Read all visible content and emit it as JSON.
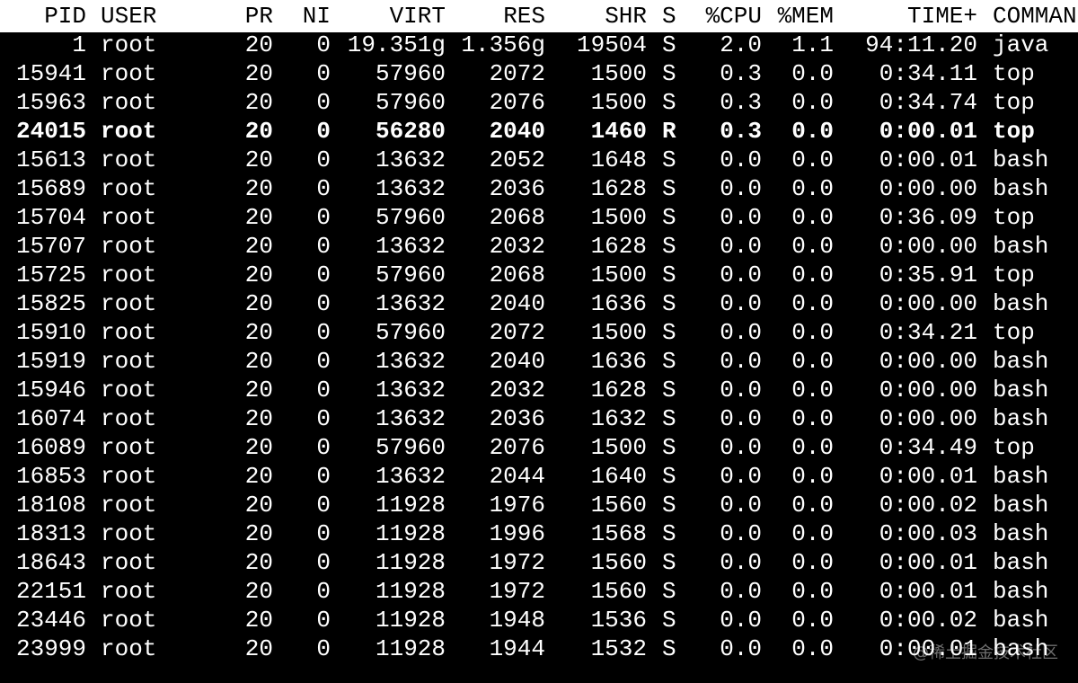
{
  "table": {
    "header": [
      "PID",
      "USER",
      "PR",
      "NI",
      "VIRT",
      "RES",
      "SHR",
      "S",
      "%CPU",
      "%MEM",
      "TIME+",
      "COMMAN"
    ],
    "rows": [
      [
        "1",
        "root",
        "20",
        "0",
        "19.351g",
        "1.356g",
        "19504",
        "S",
        "2.0",
        "1.1",
        "94:11.20",
        "java"
      ],
      [
        "15941",
        "root",
        "20",
        "0",
        "57960",
        "2072",
        "1500",
        "S",
        "0.3",
        "0.0",
        "0:34.11",
        "top"
      ],
      [
        "15963",
        "root",
        "20",
        "0",
        "57960",
        "2076",
        "1500",
        "S",
        "0.3",
        "0.0",
        "0:34.74",
        "top"
      ],
      [
        "24015",
        "root",
        "20",
        "0",
        "56280",
        "2040",
        "1460",
        "R",
        "0.3",
        "0.0",
        "0:00.01",
        "top"
      ],
      [
        "15613",
        "root",
        "20",
        "0",
        "13632",
        "2052",
        "1648",
        "S",
        "0.0",
        "0.0",
        "0:00.01",
        "bash"
      ],
      [
        "15689",
        "root",
        "20",
        "0",
        "13632",
        "2036",
        "1628",
        "S",
        "0.0",
        "0.0",
        "0:00.00",
        "bash"
      ],
      [
        "15704",
        "root",
        "20",
        "0",
        "57960",
        "2068",
        "1500",
        "S",
        "0.0",
        "0.0",
        "0:36.09",
        "top"
      ],
      [
        "15707",
        "root",
        "20",
        "0",
        "13632",
        "2032",
        "1628",
        "S",
        "0.0",
        "0.0",
        "0:00.00",
        "bash"
      ],
      [
        "15725",
        "root",
        "20",
        "0",
        "57960",
        "2068",
        "1500",
        "S",
        "0.0",
        "0.0",
        "0:35.91",
        "top"
      ],
      [
        "15825",
        "root",
        "20",
        "0",
        "13632",
        "2040",
        "1636",
        "S",
        "0.0",
        "0.0",
        "0:00.00",
        "bash"
      ],
      [
        "15910",
        "root",
        "20",
        "0",
        "57960",
        "2072",
        "1500",
        "S",
        "0.0",
        "0.0",
        "0:34.21",
        "top"
      ],
      [
        "15919",
        "root",
        "20",
        "0",
        "13632",
        "2040",
        "1636",
        "S",
        "0.0",
        "0.0",
        "0:00.00",
        "bash"
      ],
      [
        "15946",
        "root",
        "20",
        "0",
        "13632",
        "2032",
        "1628",
        "S",
        "0.0",
        "0.0",
        "0:00.00",
        "bash"
      ],
      [
        "16074",
        "root",
        "20",
        "0",
        "13632",
        "2036",
        "1632",
        "S",
        "0.0",
        "0.0",
        "0:00.00",
        "bash"
      ],
      [
        "16089",
        "root",
        "20",
        "0",
        "57960",
        "2076",
        "1500",
        "S",
        "0.0",
        "0.0",
        "0:34.49",
        "top"
      ],
      [
        "16853",
        "root",
        "20",
        "0",
        "13632",
        "2044",
        "1640",
        "S",
        "0.0",
        "0.0",
        "0:00.01",
        "bash"
      ],
      [
        "18108",
        "root",
        "20",
        "0",
        "11928",
        "1976",
        "1560",
        "S",
        "0.0",
        "0.0",
        "0:00.02",
        "bash"
      ],
      [
        "18313",
        "root",
        "20",
        "0",
        "11928",
        "1996",
        "1568",
        "S",
        "0.0",
        "0.0",
        "0:00.03",
        "bash"
      ],
      [
        "18643",
        "root",
        "20",
        "0",
        "11928",
        "1972",
        "1560",
        "S",
        "0.0",
        "0.0",
        "0:00.01",
        "bash"
      ],
      [
        "22151",
        "root",
        "20",
        "0",
        "11928",
        "1972",
        "1560",
        "S",
        "0.0",
        "0.0",
        "0:00.01",
        "bash"
      ],
      [
        "23446",
        "root",
        "20",
        "0",
        "11928",
        "1948",
        "1536",
        "S",
        "0.0",
        "0.0",
        "0:00.02",
        "bash"
      ],
      [
        "23999",
        "root",
        "20",
        "0",
        "11928",
        "1944",
        "1532",
        "S",
        "0.0",
        "0.0",
        "0:00.01",
        "bash"
      ]
    ]
  },
  "watermark": "@稀土掘金技术社区"
}
